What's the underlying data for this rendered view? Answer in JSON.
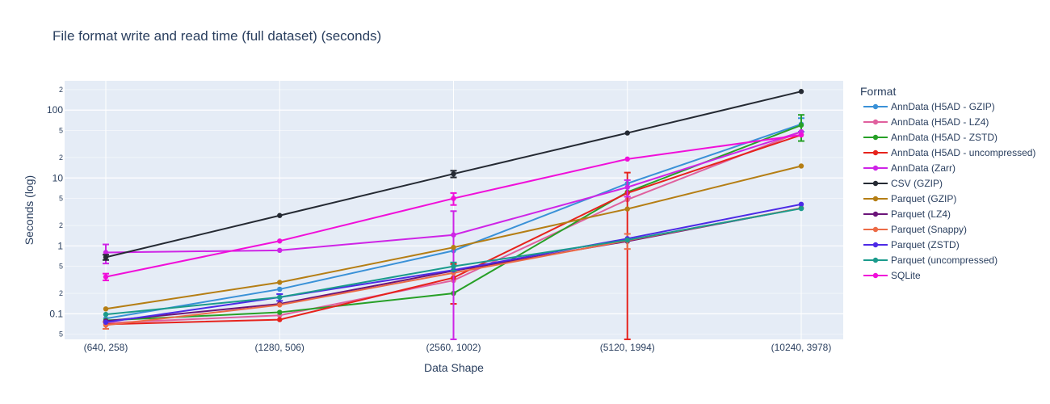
{
  "chart_data": {
    "type": "line",
    "title": "File format write and read time (full dataset) (seconds)",
    "xlabel": "Data Shape",
    "ylabel": "Seconds (log)",
    "yscale": "log",
    "ylim": [
      0.042,
      270
    ],
    "grid": true,
    "legend_title": "Format",
    "legend_position": "right",
    "categories": [
      "(640, 258)",
      "(1280, 506)",
      "(2560, 1002)",
      "(5120, 1994)",
      "(10240, 3978)"
    ],
    "y_major_ticks": [
      {
        "value": 0.1,
        "label": "0.1"
      },
      {
        "value": 1,
        "label": "1"
      },
      {
        "value": 10,
        "label": "10"
      },
      {
        "value": 100,
        "label": "100"
      }
    ],
    "y_minor_ticks": [
      {
        "value": 0.05,
        "label": "5"
      },
      {
        "value": 0.2,
        "label": "2"
      },
      {
        "value": 0.5,
        "label": "5"
      },
      {
        "value": 2,
        "label": "2"
      },
      {
        "value": 5,
        "label": "5"
      },
      {
        "value": 20,
        "label": "2"
      },
      {
        "value": 50,
        "label": "5"
      },
      {
        "value": 200,
        "label": "2"
      }
    ],
    "series": [
      {
        "name": "AnnData (H5AD - GZIP)",
        "color": "#3a91d7",
        "values": [
          0.085,
          0.23,
          0.85,
          8.3,
          62
        ],
        "errors": [
          0,
          0,
          0,
          0,
          14
        ]
      },
      {
        "name": "AnnData (H5AD - LZ4)",
        "color": "#e0609e",
        "values": [
          0.073,
          0.095,
          0.31,
          4.8,
          48
        ],
        "errors": [
          0,
          0,
          0,
          0,
          0
        ]
      },
      {
        "name": "AnnData (H5AD - ZSTD)",
        "color": "#27a027",
        "values": [
          0.08,
          0.105,
          0.2,
          6.2,
          60
        ],
        "errors": [
          0,
          0,
          0,
          0,
          25
        ]
      },
      {
        "name": "AnnData (H5AD - uncompressed)",
        "color": "#e6231c",
        "values": [
          0.07,
          0.082,
          0.34,
          6.0,
          43
        ],
        "errors": [
          0,
          0,
          0.2,
          6,
          0
        ]
      },
      {
        "name": "AnnData (Zarr)",
        "color": "#ce24e6",
        "values": [
          0.8,
          0.86,
          1.45,
          7.3,
          48
        ],
        "errors": [
          0.25,
          0,
          1.8,
          2,
          0
        ]
      },
      {
        "name": "CSV (GZIP)",
        "color": "#252a33",
        "values": [
          0.68,
          2.8,
          11.5,
          46,
          188
        ],
        "errors": [
          0.06,
          0,
          1.3,
          0,
          0
        ]
      },
      {
        "name": "Parquet (GZIP)",
        "color": "#b57e14",
        "values": [
          0.118,
          0.29,
          0.95,
          3.5,
          15
        ],
        "errors": [
          0,
          0,
          0,
          0,
          0
        ]
      },
      {
        "name": "Parquet (LZ4)",
        "color": "#6b1479",
        "values": [
          0.078,
          0.14,
          0.43,
          1.17,
          3.6
        ],
        "errors": [
          0,
          0,
          0,
          0,
          0
        ]
      },
      {
        "name": "Parquet (Snappy)",
        "color": "#ec6b46",
        "values": [
          0.068,
          0.135,
          0.4,
          1.2,
          3.6
        ],
        "errors": [
          0.008,
          0,
          0,
          0.3,
          0
        ]
      },
      {
        "name": "Parquet (ZSTD)",
        "color": "#4d2ae6",
        "values": [
          0.075,
          0.175,
          0.44,
          1.28,
          4.1
        ],
        "errors": [
          0,
          0.02,
          0,
          0,
          0
        ]
      },
      {
        "name": "Parquet (uncompressed)",
        "color": "#1b9b8c",
        "values": [
          0.098,
          0.175,
          0.5,
          1.22,
          3.55
        ],
        "errors": [
          0,
          0,
          0.07,
          0,
          0
        ]
      },
      {
        "name": "SQLite",
        "color": "#f00fd9",
        "values": [
          0.35,
          1.18,
          5.0,
          19,
          43
        ],
        "errors": [
          0.04,
          0,
          1.0,
          0,
          0
        ]
      }
    ]
  }
}
